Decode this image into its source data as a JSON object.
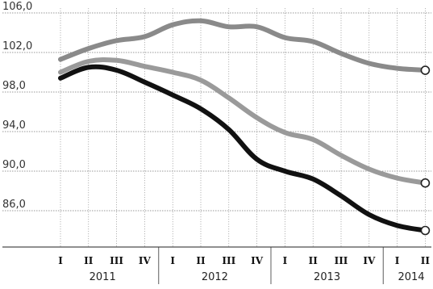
{
  "chart_data": {
    "type": "line",
    "title": "",
    "xlabel": "",
    "ylabel": "",
    "ylim": [
      82.0,
      106.0
    ],
    "yticks": [
      "106,0",
      "102,0",
      "98,0",
      "94,0",
      "90,0",
      "86,0"
    ],
    "ytick_values": [
      106,
      102,
      98,
      94,
      90,
      86
    ],
    "grid": true,
    "legend": "none",
    "quarter_labels": [
      "I",
      "II",
      "III",
      "IV",
      "I",
      "II",
      "III",
      "IV",
      "I",
      "II",
      "III",
      "IV",
      "I",
      "II"
    ],
    "years": [
      {
        "label": "2011",
        "quarters": 4
      },
      {
        "label": "2012",
        "quarters": 4
      },
      {
        "label": "2013",
        "quarters": 4
      },
      {
        "label": "2014",
        "quarters": 2
      }
    ],
    "series": [
      {
        "color": "#8a8a8a",
        "values": [
          101.3,
          102.4,
          103.2,
          103.6,
          104.8,
          105.2,
          104.6,
          104.6,
          103.5,
          103.1,
          101.9,
          100.9,
          100.4,
          100.2
        ],
        "end_marker": true
      },
      {
        "color": "#9a9a9a",
        "values": [
          100.0,
          101.1,
          101.2,
          100.6,
          100.0,
          99.2,
          97.4,
          95.4,
          93.9,
          93.2,
          91.6,
          90.2,
          89.3,
          88.8
        ],
        "end_marker": true
      },
      {
        "color": "#111111",
        "values": [
          99.4,
          100.5,
          100.2,
          99.0,
          97.7,
          96.3,
          94.2,
          91.2,
          90.0,
          89.2,
          87.5,
          85.6,
          84.5,
          84.0
        ],
        "end_marker": true
      }
    ]
  }
}
